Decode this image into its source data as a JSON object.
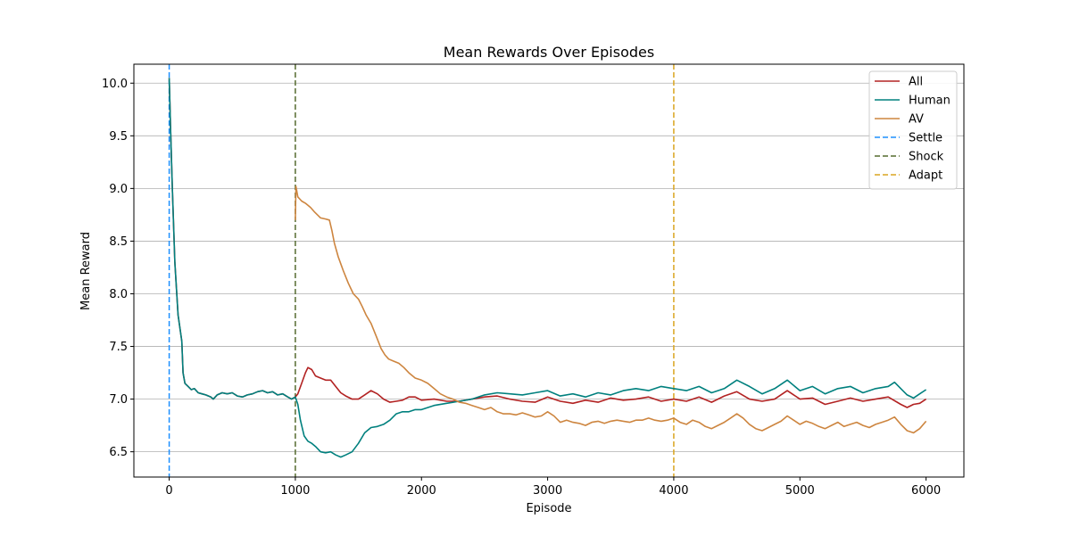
{
  "chart_data": {
    "type": "line",
    "title": "Mean Rewards Over Episodes",
    "xlabel": "Episode",
    "ylabel": "Mean Reward",
    "xlim": [
      -280,
      6300
    ],
    "ylim": [
      6.26,
      10.18
    ],
    "xticks": [
      0,
      1000,
      2000,
      3000,
      4000,
      5000,
      6000
    ],
    "yticks": [
      6.5,
      7.0,
      7.5,
      8.0,
      8.5,
      9.0,
      9.5,
      10.0
    ],
    "ytick_labels": [
      "6.5",
      "7.0",
      "7.5",
      "8.0",
      "8.5",
      "9.0",
      "9.5",
      "10.0"
    ],
    "grid": "horizontal",
    "legend_position": "top-right",
    "series": [
      {
        "name": "All",
        "color": "#b22222",
        "points": [
          [
            0,
            10.05
          ],
          [
            10,
            9.6
          ],
          [
            25,
            9.0
          ],
          [
            45,
            8.3
          ],
          [
            70,
            7.8
          ],
          [
            100,
            7.55
          ],
          [
            110,
            7.25
          ],
          [
            125,
            7.15
          ],
          [
            150,
            7.12
          ],
          [
            175,
            7.09
          ],
          [
            200,
            7.1
          ],
          [
            230,
            7.06
          ],
          [
            260,
            7.05
          ],
          [
            290,
            7.04
          ],
          [
            330,
            7.02
          ],
          [
            350,
            7.0
          ],
          [
            380,
            7.04
          ],
          [
            420,
            7.06
          ],
          [
            460,
            7.05
          ],
          [
            500,
            7.06
          ],
          [
            540,
            7.03
          ],
          [
            580,
            7.02
          ],
          [
            620,
            7.04
          ],
          [
            660,
            7.05
          ],
          [
            700,
            7.07
          ],
          [
            740,
            7.08
          ],
          [
            780,
            7.06
          ],
          [
            820,
            7.07
          ],
          [
            860,
            7.04
          ],
          [
            900,
            7.05
          ],
          [
            940,
            7.02
          ],
          [
            970,
            7.0
          ],
          [
            1000,
            7.02
          ],
          [
            1020,
            7.05
          ],
          [
            1050,
            7.15
          ],
          [
            1080,
            7.25
          ],
          [
            1100,
            7.3
          ],
          [
            1130,
            7.28
          ],
          [
            1160,
            7.22
          ],
          [
            1200,
            7.2
          ],
          [
            1240,
            7.18
          ],
          [
            1280,
            7.18
          ],
          [
            1320,
            7.12
          ],
          [
            1360,
            7.06
          ],
          [
            1400,
            7.03
          ],
          [
            1450,
            7.0
          ],
          [
            1500,
            7.0
          ],
          [
            1550,
            7.04
          ],
          [
            1600,
            7.08
          ],
          [
            1650,
            7.05
          ],
          [
            1700,
            7.0
          ],
          [
            1750,
            6.97
          ],
          [
            1800,
            6.98
          ],
          [
            1850,
            6.99
          ],
          [
            1900,
            7.02
          ],
          [
            1950,
            7.02
          ],
          [
            2000,
            6.99
          ],
          [
            2100,
            7.0
          ],
          [
            2200,
            6.98
          ],
          [
            2300,
            6.98
          ],
          [
            2400,
            7.0
          ],
          [
            2500,
            7.02
          ],
          [
            2600,
            7.03
          ],
          [
            2700,
            7.0
          ],
          [
            2800,
            6.98
          ],
          [
            2900,
            6.97
          ],
          [
            3000,
            7.02
          ],
          [
            3100,
            6.98
          ],
          [
            3200,
            6.96
          ],
          [
            3300,
            6.99
          ],
          [
            3400,
            6.97
          ],
          [
            3500,
            7.01
          ],
          [
            3600,
            6.99
          ],
          [
            3700,
            7.0
          ],
          [
            3800,
            7.02
          ],
          [
            3900,
            6.98
          ],
          [
            4000,
            7.0
          ],
          [
            4100,
            6.98
          ],
          [
            4200,
            7.02
          ],
          [
            4300,
            6.97
          ],
          [
            4400,
            7.03
          ],
          [
            4500,
            7.07
          ],
          [
            4600,
            7.0
          ],
          [
            4700,
            6.98
          ],
          [
            4800,
            7.0
          ],
          [
            4900,
            7.08
          ],
          [
            5000,
            7.0
          ],
          [
            5100,
            7.01
          ],
          [
            5200,
            6.95
          ],
          [
            5300,
            6.98
          ],
          [
            5400,
            7.01
          ],
          [
            5500,
            6.98
          ],
          [
            5600,
            7.0
          ],
          [
            5700,
            7.02
          ],
          [
            5800,
            6.95
          ],
          [
            5850,
            6.92
          ],
          [
            5900,
            6.95
          ],
          [
            5950,
            6.96
          ],
          [
            6000,
            7.0
          ]
        ]
      },
      {
        "name": "Human",
        "color": "#00807e",
        "points": [
          [
            0,
            10.05
          ],
          [
            10,
            9.6
          ],
          [
            25,
            9.0
          ],
          [
            45,
            8.3
          ],
          [
            70,
            7.8
          ],
          [
            100,
            7.55
          ],
          [
            110,
            7.25
          ],
          [
            125,
            7.15
          ],
          [
            150,
            7.12
          ],
          [
            175,
            7.09
          ],
          [
            200,
            7.1
          ],
          [
            230,
            7.06
          ],
          [
            260,
            7.05
          ],
          [
            290,
            7.04
          ],
          [
            330,
            7.02
          ],
          [
            350,
            7.0
          ],
          [
            380,
            7.04
          ],
          [
            420,
            7.06
          ],
          [
            460,
            7.05
          ],
          [
            500,
            7.06
          ],
          [
            540,
            7.03
          ],
          [
            580,
            7.02
          ],
          [
            620,
            7.04
          ],
          [
            660,
            7.05
          ],
          [
            700,
            7.07
          ],
          [
            740,
            7.08
          ],
          [
            780,
            7.06
          ],
          [
            820,
            7.07
          ],
          [
            860,
            7.04
          ],
          [
            900,
            7.05
          ],
          [
            940,
            7.02
          ],
          [
            970,
            7.0
          ],
          [
            1000,
            7.02
          ],
          [
            1020,
            6.95
          ],
          [
            1040,
            6.8
          ],
          [
            1070,
            6.65
          ],
          [
            1100,
            6.6
          ],
          [
            1130,
            6.58
          ],
          [
            1160,
            6.55
          ],
          [
            1200,
            6.5
          ],
          [
            1240,
            6.49
          ],
          [
            1280,
            6.5
          ],
          [
            1320,
            6.47
          ],
          [
            1360,
            6.45
          ],
          [
            1400,
            6.47
          ],
          [
            1450,
            6.5
          ],
          [
            1500,
            6.58
          ],
          [
            1550,
            6.68
          ],
          [
            1600,
            6.73
          ],
          [
            1650,
            6.74
          ],
          [
            1700,
            6.76
          ],
          [
            1750,
            6.8
          ],
          [
            1800,
            6.86
          ],
          [
            1850,
            6.88
          ],
          [
            1900,
            6.88
          ],
          [
            1950,
            6.9
          ],
          [
            2000,
            6.9
          ],
          [
            2100,
            6.94
          ],
          [
            2200,
            6.96
          ],
          [
            2300,
            6.98
          ],
          [
            2400,
            7.0
          ],
          [
            2500,
            7.04
          ],
          [
            2600,
            7.06
          ],
          [
            2700,
            7.05
          ],
          [
            2800,
            7.04
          ],
          [
            2900,
            7.06
          ],
          [
            3000,
            7.08
          ],
          [
            3100,
            7.03
          ],
          [
            3200,
            7.05
          ],
          [
            3300,
            7.02
          ],
          [
            3400,
            7.06
          ],
          [
            3500,
            7.04
          ],
          [
            3600,
            7.08
          ],
          [
            3700,
            7.1
          ],
          [
            3800,
            7.08
          ],
          [
            3900,
            7.12
          ],
          [
            4000,
            7.1
          ],
          [
            4100,
            7.08
          ],
          [
            4200,
            7.12
          ],
          [
            4300,
            7.06
          ],
          [
            4400,
            7.1
          ],
          [
            4500,
            7.18
          ],
          [
            4600,
            7.12
          ],
          [
            4700,
            7.05
          ],
          [
            4800,
            7.1
          ],
          [
            4900,
            7.18
          ],
          [
            5000,
            7.08
          ],
          [
            5100,
            7.12
          ],
          [
            5200,
            7.05
          ],
          [
            5300,
            7.1
          ],
          [
            5400,
            7.12
          ],
          [
            5500,
            7.06
          ],
          [
            5600,
            7.1
          ],
          [
            5700,
            7.12
          ],
          [
            5750,
            7.16
          ],
          [
            5800,
            7.1
          ],
          [
            5850,
            7.04
          ],
          [
            5900,
            7.01
          ],
          [
            5950,
            7.05
          ],
          [
            6000,
            7.09
          ]
        ]
      },
      {
        "name": "AV",
        "color": "#cd853f",
        "points": [
          [
            1000,
            8.7
          ],
          [
            1005,
            9.02
          ],
          [
            1020,
            8.92
          ],
          [
            1050,
            8.88
          ],
          [
            1080,
            8.86
          ],
          [
            1120,
            8.82
          ],
          [
            1150,
            8.78
          ],
          [
            1200,
            8.72
          ],
          [
            1240,
            8.71
          ],
          [
            1270,
            8.7
          ],
          [
            1290,
            8.6
          ],
          [
            1310,
            8.48
          ],
          [
            1340,
            8.35
          ],
          [
            1380,
            8.22
          ],
          [
            1420,
            8.1
          ],
          [
            1460,
            8.0
          ],
          [
            1500,
            7.95
          ],
          [
            1530,
            7.88
          ],
          [
            1560,
            7.8
          ],
          [
            1600,
            7.72
          ],
          [
            1640,
            7.6
          ],
          [
            1680,
            7.48
          ],
          [
            1710,
            7.42
          ],
          [
            1740,
            7.38
          ],
          [
            1780,
            7.36
          ],
          [
            1820,
            7.34
          ],
          [
            1860,
            7.3
          ],
          [
            1900,
            7.25
          ],
          [
            1950,
            7.2
          ],
          [
            2000,
            7.18
          ],
          [
            2050,
            7.15
          ],
          [
            2100,
            7.1
          ],
          [
            2150,
            7.05
          ],
          [
            2200,
            7.02
          ],
          [
            2250,
            7.0
          ],
          [
            2300,
            6.97
          ],
          [
            2350,
            6.96
          ],
          [
            2400,
            6.94
          ],
          [
            2450,
            6.92
          ],
          [
            2500,
            6.9
          ],
          [
            2550,
            6.92
          ],
          [
            2600,
            6.88
          ],
          [
            2650,
            6.86
          ],
          [
            2700,
            6.86
          ],
          [
            2750,
            6.85
          ],
          [
            2800,
            6.87
          ],
          [
            2850,
            6.85
          ],
          [
            2900,
            6.83
          ],
          [
            2950,
            6.84
          ],
          [
            3000,
            6.88
          ],
          [
            3050,
            6.84
          ],
          [
            3100,
            6.78
          ],
          [
            3150,
            6.8
          ],
          [
            3200,
            6.78
          ],
          [
            3250,
            6.77
          ],
          [
            3300,
            6.75
          ],
          [
            3350,
            6.78
          ],
          [
            3400,
            6.79
          ],
          [
            3450,
            6.77
          ],
          [
            3500,
            6.79
          ],
          [
            3550,
            6.8
          ],
          [
            3600,
            6.79
          ],
          [
            3650,
            6.78
          ],
          [
            3700,
            6.8
          ],
          [
            3750,
            6.8
          ],
          [
            3800,
            6.82
          ],
          [
            3850,
            6.8
          ],
          [
            3900,
            6.79
          ],
          [
            3950,
            6.8
          ],
          [
            4000,
            6.82
          ],
          [
            4050,
            6.78
          ],
          [
            4100,
            6.76
          ],
          [
            4150,
            6.8
          ],
          [
            4200,
            6.78
          ],
          [
            4250,
            6.74
          ],
          [
            4300,
            6.72
          ],
          [
            4350,
            6.75
          ],
          [
            4400,
            6.78
          ],
          [
            4450,
            6.82
          ],
          [
            4500,
            6.86
          ],
          [
            4550,
            6.82
          ],
          [
            4600,
            6.76
          ],
          [
            4650,
            6.72
          ],
          [
            4700,
            6.7
          ],
          [
            4750,
            6.73
          ],
          [
            4800,
            6.76
          ],
          [
            4850,
            6.79
          ],
          [
            4900,
            6.84
          ],
          [
            4950,
            6.8
          ],
          [
            5000,
            6.76
          ],
          [
            5050,
            6.79
          ],
          [
            5100,
            6.77
          ],
          [
            5150,
            6.74
          ],
          [
            5200,
            6.72
          ],
          [
            5250,
            6.75
          ],
          [
            5300,
            6.78
          ],
          [
            5350,
            6.74
          ],
          [
            5400,
            6.76
          ],
          [
            5450,
            6.78
          ],
          [
            5500,
            6.75
          ],
          [
            5550,
            6.73
          ],
          [
            5600,
            6.76
          ],
          [
            5650,
            6.78
          ],
          [
            5700,
            6.8
          ],
          [
            5750,
            6.83
          ],
          [
            5800,
            6.76
          ],
          [
            5850,
            6.7
          ],
          [
            5900,
            6.68
          ],
          [
            5950,
            6.72
          ],
          [
            6000,
            6.79
          ]
        ]
      }
    ],
    "vlines": [
      {
        "name": "Settle",
        "x": 0,
        "color": "#1e90ff"
      },
      {
        "name": "Shock",
        "x": 1000,
        "color": "#556b2f"
      },
      {
        "name": "Adapt",
        "x": 4000,
        "color": "#daa520"
      }
    ]
  }
}
